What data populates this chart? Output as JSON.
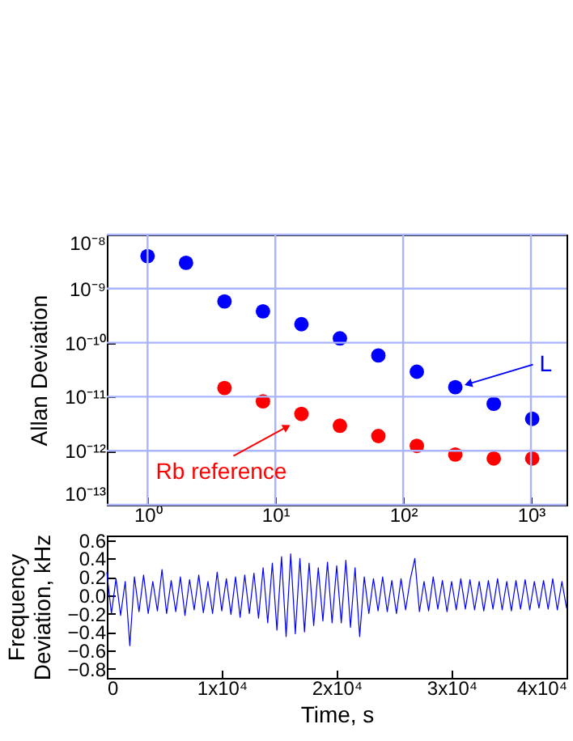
{
  "chart_data": [
    {
      "type": "scatter",
      "ylabel": "Allan Deviation",
      "log": "xy",
      "xlim": [
        0.48,
        1900
      ],
      "ylim": [
        1e-13,
        1e-08
      ],
      "xticks": [
        {
          "value": 1,
          "label": "10⁰"
        },
        {
          "value": 10,
          "label": "10¹"
        },
        {
          "value": 100,
          "label": "10²"
        },
        {
          "value": 1000,
          "label": "10³"
        }
      ],
      "yticks": [
        {
          "value": 1e-13,
          "label": "10⁻¹³"
        },
        {
          "value": 1e-12,
          "label": "10⁻¹²"
        },
        {
          "value": 1e-11,
          "label": "10⁻¹¹"
        },
        {
          "value": 1e-10,
          "label": "10⁻¹⁰"
        },
        {
          "value": 1e-09,
          "label": "10⁻⁹"
        },
        {
          "value": 1e-08,
          "label": "10⁻⁸"
        }
      ],
      "grid": true,
      "marker": "circle",
      "series": [
        {
          "color": "#0000ff",
          "x": [
            1,
            2,
            4,
            8,
            16,
            32,
            64,
            128,
            256,
            512,
            1024
          ],
          "values": [
            4e-09,
            3e-09,
            5.8e-10,
            3.8e-10,
            2.2e-10,
            1.2e-10,
            5.8e-11,
            2.9e-11,
            1.5e-11,
            7.4e-12,
            3.9e-12
          ]
        },
        {
          "color": "#ff0000",
          "x": [
            4,
            8,
            16,
            32,
            64,
            128,
            256,
            512,
            1024
          ],
          "values": [
            1.45e-11,
            8.2e-12,
            4.8e-12,
            2.9e-12,
            1.87e-12,
            1.23e-12,
            8.5e-13,
            7.2e-13,
            7.2e-13
          ]
        }
      ],
      "annotations": [
        {
          "text": "Rb reference",
          "x": 16,
          "y": 4.8e-12
        },
        {
          "text": "L",
          "x": 256,
          "y": 1.5e-11
        }
      ]
    },
    {
      "type": "line",
      "xlabel": "Time, s",
      "ylabel": "Frequency\nDeviation, kHz",
      "xlim": [
        0,
        40000
      ],
      "ylim": [
        -0.9,
        0.65
      ],
      "xticks": [
        0,
        {
          "value": 10000,
          "label": "1x10⁴"
        },
        {
          "value": 20000,
          "label": "2x10⁴"
        },
        {
          "value": 30000,
          "label": "3x10⁴"
        },
        {
          "value": 40000,
          "label": "4x10⁴"
        }
      ],
      "yticks": [
        0.6,
        0.4,
        0.2,
        {
          "value": 0,
          "label": "0.0"
        },
        -0.2,
        -0.4,
        -0.6,
        -0.8
      ],
      "x": [
        0,
        400,
        800,
        1200,
        1600,
        2000,
        2400,
        2800,
        3200,
        3600,
        4000,
        4400,
        4800,
        5200,
        5600,
        6000,
        6400,
        6800,
        7200,
        7600,
        8000,
        8400,
        8800,
        9200,
        9600,
        10000,
        10400,
        10800,
        11200,
        11600,
        12000,
        12400,
        12800,
        13200,
        13600,
        14000,
        14400,
        14800,
        15200,
        15600,
        16000,
        16400,
        16800,
        17200,
        17600,
        18000,
        18400,
        18800,
        19200,
        19600,
        20000,
        20400,
        20800,
        21200,
        21600,
        22000,
        22400,
        22800,
        23200,
        23600,
        24000,
        24400,
        24800,
        25200,
        25600,
        26000,
        26400,
        26800,
        27200,
        27600,
        28000,
        28400,
        28800,
        29200,
        29600,
        30000,
        30400,
        30800,
        31200,
        31600,
        32000,
        32400,
        32800,
        33200,
        33600,
        34000,
        34400,
        34800,
        35200,
        35600,
        36000,
        36400,
        36800,
        37200,
        37600,
        38000,
        38400,
        38800,
        39200,
        39600,
        40000
      ],
      "series": [
        {
          "color": "#0000ff",
          "values": [
            0.25,
            -0.2,
            0.18,
            -0.22,
            0.15,
            -0.55,
            0.2,
            -0.18,
            0.22,
            -0.2,
            0.15,
            -0.17,
            0.28,
            -0.2,
            0.16,
            -0.18,
            0.2,
            -0.22,
            0.17,
            -0.16,
            0.22,
            -0.19,
            0.15,
            -0.2,
            0.25,
            -0.17,
            0.18,
            -0.21,
            0.2,
            -0.24,
            0.22,
            -0.2,
            0.24,
            -0.25,
            0.3,
            -0.3,
            0.35,
            -0.38,
            0.42,
            -0.45,
            0.45,
            -0.42,
            0.4,
            -0.4,
            0.35,
            -0.33,
            0.3,
            -0.28,
            0.36,
            -0.3,
            0.32,
            -0.3,
            0.38,
            -0.35,
            0.3,
            -0.45,
            0.2,
            -0.2,
            0.18,
            -0.17,
            0.2,
            -0.18,
            0.16,
            -0.2,
            0.18,
            -0.16,
            0.17,
            0.4,
            -0.18,
            0.15,
            -0.17,
            0.2,
            -0.15,
            0.16,
            -0.18,
            0.15,
            -0.16,
            0.18,
            -0.15,
            0.17,
            -0.16,
            0.15,
            -0.17,
            0.16,
            -0.15,
            0.18,
            -0.16,
            0.15,
            -0.17,
            0.16,
            -0.15,
            0.17,
            -0.16,
            0.15,
            -0.14,
            0.16,
            -0.15,
            0.18,
            -0.16,
            0.15,
            -0.14
          ]
        }
      ]
    }
  ]
}
